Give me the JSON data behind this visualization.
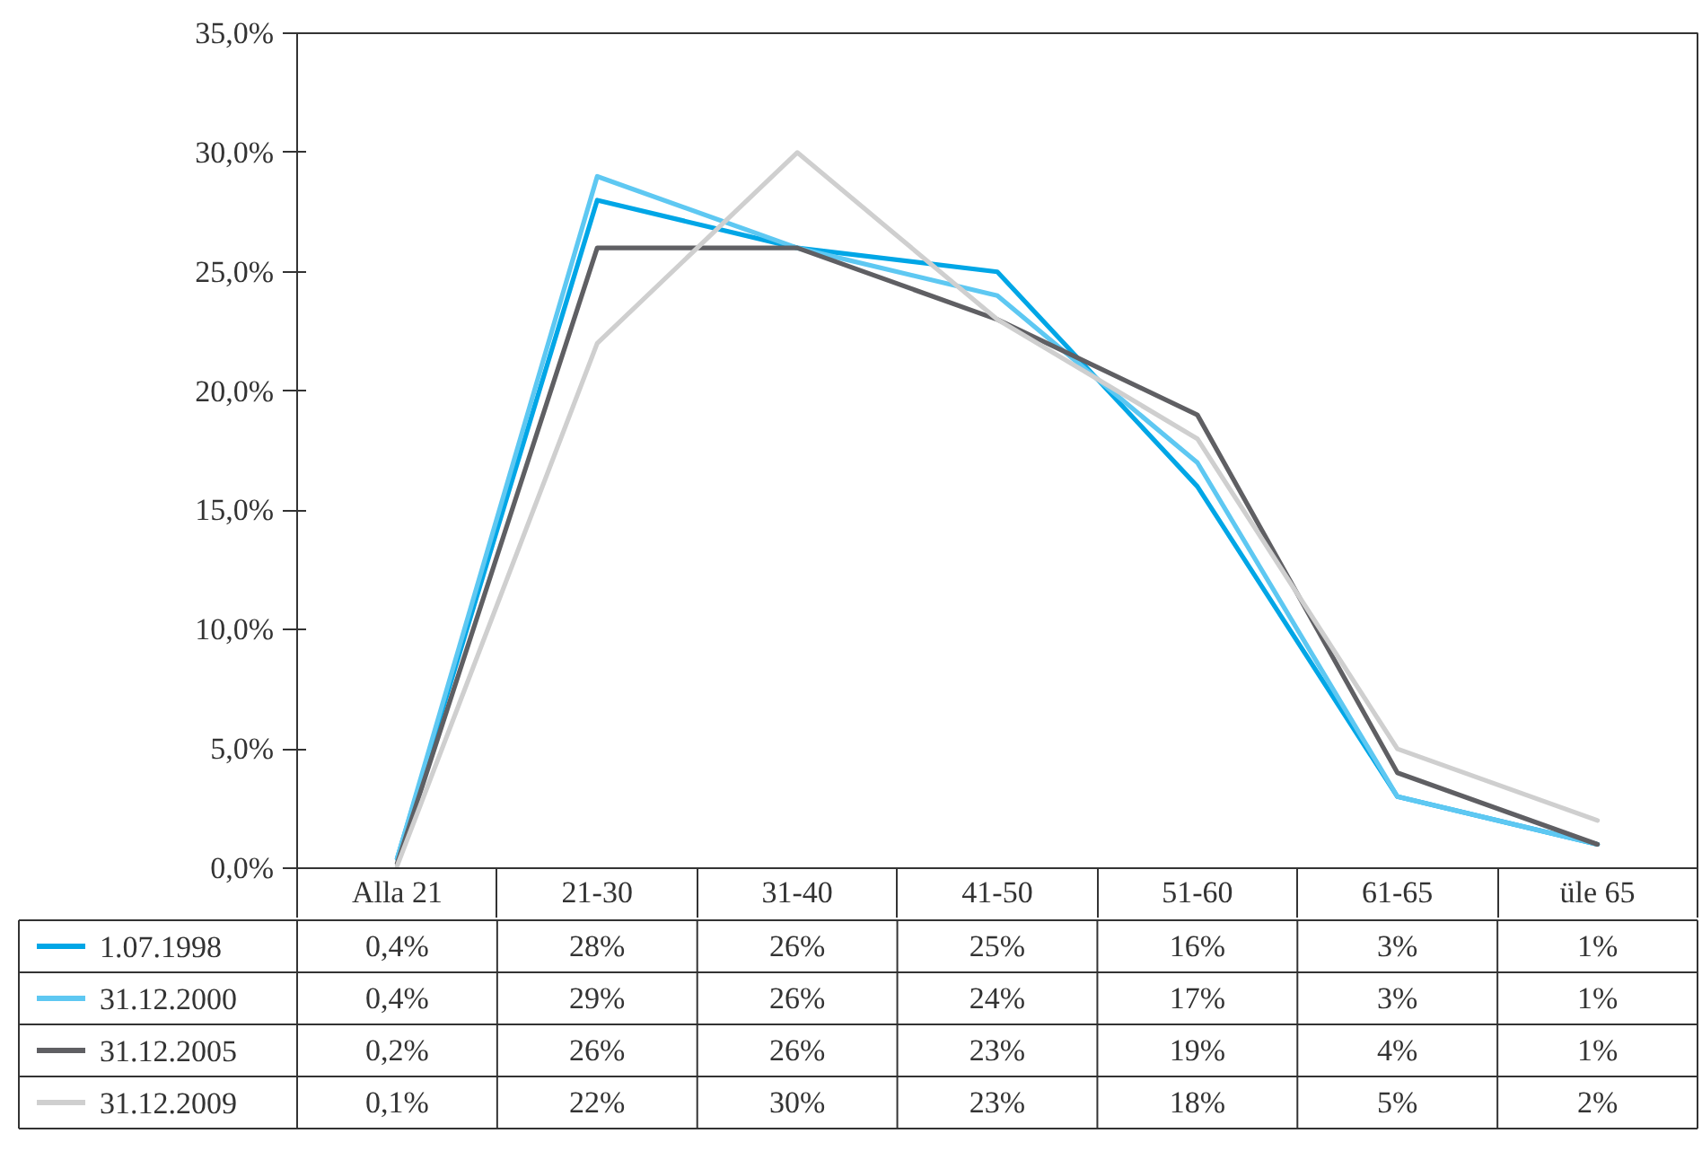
{
  "chart_data": {
    "type": "line",
    "categories": [
      "Alla 21",
      "21-30",
      "31-40",
      "41-50",
      "51-60",
      "61-65",
      "üle 65"
    ],
    "ylim": [
      0,
      35
    ],
    "yticks": [
      {
        "value": 0,
        "label": "0,0%"
      },
      {
        "value": 5,
        "label": "5,0%"
      },
      {
        "value": 10,
        "label": "10,0%"
      },
      {
        "value": 15,
        "label": "15,0%"
      },
      {
        "value": 20,
        "label": "20,0%"
      },
      {
        "value": 25,
        "label": "25,0%"
      },
      {
        "value": 30,
        "label": "30,0%"
      },
      {
        "value": 35,
        "label": "35,0%"
      }
    ],
    "legend": "bottom",
    "series": [
      {
        "name": "1.07.1998",
        "color": "#00a6e6",
        "values": [
          0.4,
          28,
          26,
          25,
          16,
          3,
          1
        ],
        "value_labels": [
          "0,4%",
          "28%",
          "26%",
          "25%",
          "16%",
          "3%",
          "1%"
        ]
      },
      {
        "name": "31.12.2000",
        "color": "#5ec8f2",
        "values": [
          0.4,
          29,
          26,
          24,
          17,
          3,
          1
        ],
        "value_labels": [
          "0,4%",
          "29%",
          "26%",
          "24%",
          "17%",
          "3%",
          "1%"
        ]
      },
      {
        "name": "31.12.2005",
        "color": "#5f5f63",
        "values": [
          0.2,
          26,
          26,
          23,
          19,
          4,
          1
        ],
        "value_labels": [
          "0,2%",
          "26%",
          "26%",
          "23%",
          "19%",
          "4%",
          "1%"
        ]
      },
      {
        "name": "31.12.2009",
        "color": "#cfcfcf",
        "values": [
          0.1,
          22,
          30,
          23,
          18,
          5,
          2
        ],
        "value_labels": [
          "0,1%",
          "22%",
          "30%",
          "23%",
          "18%",
          "5%",
          "2%"
        ]
      }
    ]
  }
}
